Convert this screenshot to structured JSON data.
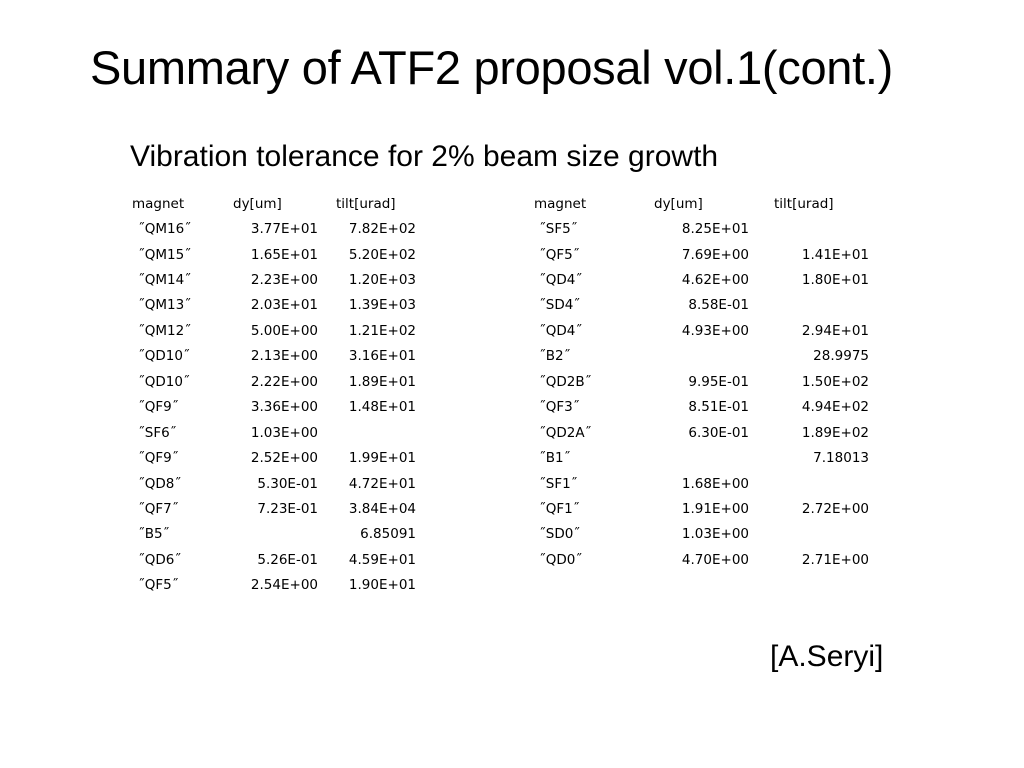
{
  "slide": {
    "title": "Summary of ATF2 proposal vol.1(cont.)",
    "subtitle": "Vibration tolerance for 2% beam size growth",
    "credit": "[A.Seryi]"
  },
  "tables": [
    {
      "headers": [
        "magnet",
        "dy[um]",
        "tilt[urad]"
      ],
      "rows": [
        [
          "˝QM16˝",
          "3.77E+01",
          "7.82E+02"
        ],
        [
          "˝QM15˝",
          "1.65E+01",
          "5.20E+02"
        ],
        [
          "˝QM14˝",
          "2.23E+00",
          "1.20E+03"
        ],
        [
          "˝QM13˝",
          "2.03E+01",
          "1.39E+03"
        ],
        [
          "˝QM12˝",
          "5.00E+00",
          "1.21E+02"
        ],
        [
          "˝QD10˝",
          "2.13E+00",
          "3.16E+01"
        ],
        [
          "˝QD10˝",
          "2.22E+00",
          "1.89E+01"
        ],
        [
          "˝QF9˝",
          "3.36E+00",
          "1.48E+01"
        ],
        [
          "˝SF6˝",
          "1.03E+00",
          ""
        ],
        [
          "˝QF9˝",
          "2.52E+00",
          "1.99E+01"
        ],
        [
          "˝QD8˝",
          "5.30E-01",
          "4.72E+01"
        ],
        [
          "˝QF7˝",
          "7.23E-01",
          "3.84E+04"
        ],
        [
          "˝B5˝",
          "",
          "6.85091"
        ],
        [
          "˝QD6˝",
          "5.26E-01",
          "4.59E+01"
        ],
        [
          "˝QF5˝",
          "2.54E+00",
          "1.90E+01"
        ]
      ]
    },
    {
      "headers": [
        "magnet",
        "dy[um]",
        "tilt[urad]"
      ],
      "rows": [
        [
          "˝SF5˝",
          "8.25E+01",
          ""
        ],
        [
          "˝QF5˝",
          "7.69E+00",
          "1.41E+01"
        ],
        [
          "˝QD4˝",
          "4.62E+00",
          "1.80E+01"
        ],
        [
          "˝SD4˝",
          "8.58E-01",
          ""
        ],
        [
          "˝QD4˝",
          "4.93E+00",
          "2.94E+01"
        ],
        [
          "˝B2˝",
          "",
          "28.9975"
        ],
        [
          "˝QD2B˝",
          "9.95E-01",
          "1.50E+02"
        ],
        [
          "˝QF3˝",
          "8.51E-01",
          "4.94E+02"
        ],
        [
          "˝QD2A˝",
          "6.30E-01",
          "1.89E+02"
        ],
        [
          "˝B1˝",
          "",
          "7.18013"
        ],
        [
          "˝SF1˝",
          "1.68E+00",
          ""
        ],
        [
          "˝QF1˝",
          "1.91E+00",
          "2.72E+00"
        ],
        [
          "˝SD0˝",
          "1.03E+00",
          ""
        ],
        [
          "˝QD0˝",
          "4.70E+00",
          "2.71E+00"
        ]
      ]
    }
  ]
}
